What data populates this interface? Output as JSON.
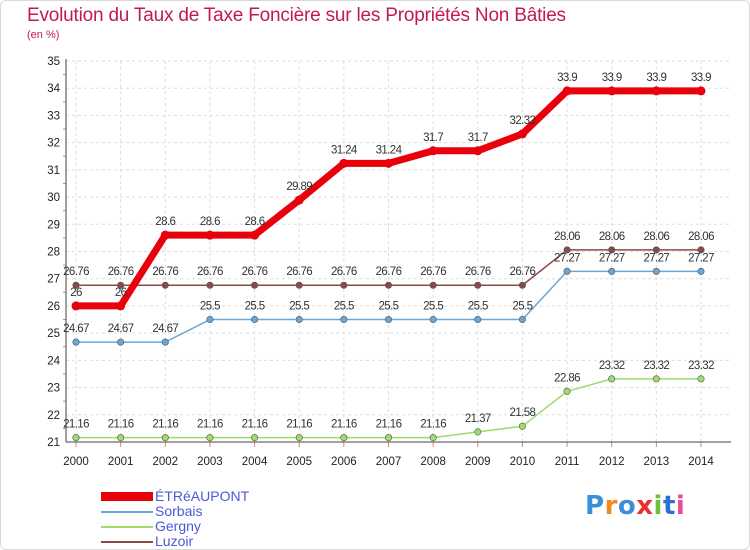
{
  "title": "Evolution du Taux de Taxe Foncière sur les Propriétés Non Bâties",
  "subtitle": "(en %)",
  "logo": {
    "text": "Proxiti",
    "colors": [
      "#3a8fd8",
      "#f08a1c",
      "#3a8fd8",
      "#e8302e",
      "#6fbf3a",
      "#2e6fcf",
      "#e84a9c"
    ]
  },
  "chart_data": {
    "type": "line",
    "x": [
      "2000",
      "2001",
      "2002",
      "2003",
      "2004",
      "2005",
      "2006",
      "2007",
      "2008",
      "2009",
      "2010",
      "2011",
      "2012",
      "2013",
      "2014"
    ],
    "ylim": [
      21,
      35
    ],
    "yticks": [
      "21",
      "22",
      "23",
      "24",
      "25",
      "26",
      "27",
      "28",
      "29",
      "30",
      "31",
      "32",
      "33",
      "34",
      "35"
    ],
    "grid": true,
    "legend_position": "bottom-left",
    "series": [
      {
        "name": "ÉTRéAUPONT",
        "color": "#e8000b",
        "width": 7,
        "values": [
          26,
          26,
          28.6,
          28.6,
          28.6,
          29.89,
          31.24,
          31.24,
          31.7,
          31.7,
          32.32,
          33.9,
          33.9,
          33.9,
          33.9
        ],
        "labels": [
          "26",
          "26",
          "28.6",
          "28.6",
          "28.6",
          "29.89",
          "31.24",
          "31.24",
          "31.7",
          "31.7",
          "32.32",
          "33.9",
          "33.9",
          "33.9",
          "33.9"
        ]
      },
      {
        "name": "Sorbais",
        "color": "#6aa7d6",
        "width": 1.5,
        "values": [
          24.67,
          24.67,
          24.67,
          25.5,
          25.5,
          25.5,
          25.5,
          25.5,
          25.5,
          25.5,
          25.5,
          27.27,
          27.27,
          27.27,
          27.27
        ],
        "labels": [
          "24.67",
          "24.67",
          "24.67",
          "25.5",
          "25.5",
          "25.5",
          "25.5",
          "25.5",
          "25.5",
          "25.5",
          "25.5",
          "27.27",
          "27.27",
          "27.27",
          "27.27"
        ]
      },
      {
        "name": "Gergny",
        "color": "#9fdc6a",
        "width": 1.5,
        "values": [
          21.16,
          21.16,
          21.16,
          21.16,
          21.16,
          21.16,
          21.16,
          21.16,
          21.16,
          21.37,
          21.58,
          22.86,
          23.32,
          23.32,
          23.32
        ],
        "labels": [
          "21.16",
          "21.16",
          "21.16",
          "21.16",
          "21.16",
          "21.16",
          "21.16",
          "21.16",
          "21.16",
          "21.37",
          "21.58",
          "22.86",
          "23.32",
          "23.32",
          "23.32"
        ]
      },
      {
        "name": "Luzoir",
        "color": "#8b4a4a",
        "width": 1.5,
        "values": [
          26.76,
          26.76,
          26.76,
          26.76,
          26.76,
          26.76,
          26.76,
          26.76,
          26.76,
          26.76,
          26.76,
          28.06,
          28.06,
          28.06,
          28.06
        ],
        "labels": [
          "26.76",
          "26.76",
          "26.76",
          "26.76",
          "26.76",
          "26.76",
          "26.76",
          "26.76",
          "26.76",
          "26.76",
          "26.76",
          "28.06",
          "28.06",
          "28.06",
          "28.06"
        ]
      }
    ]
  }
}
